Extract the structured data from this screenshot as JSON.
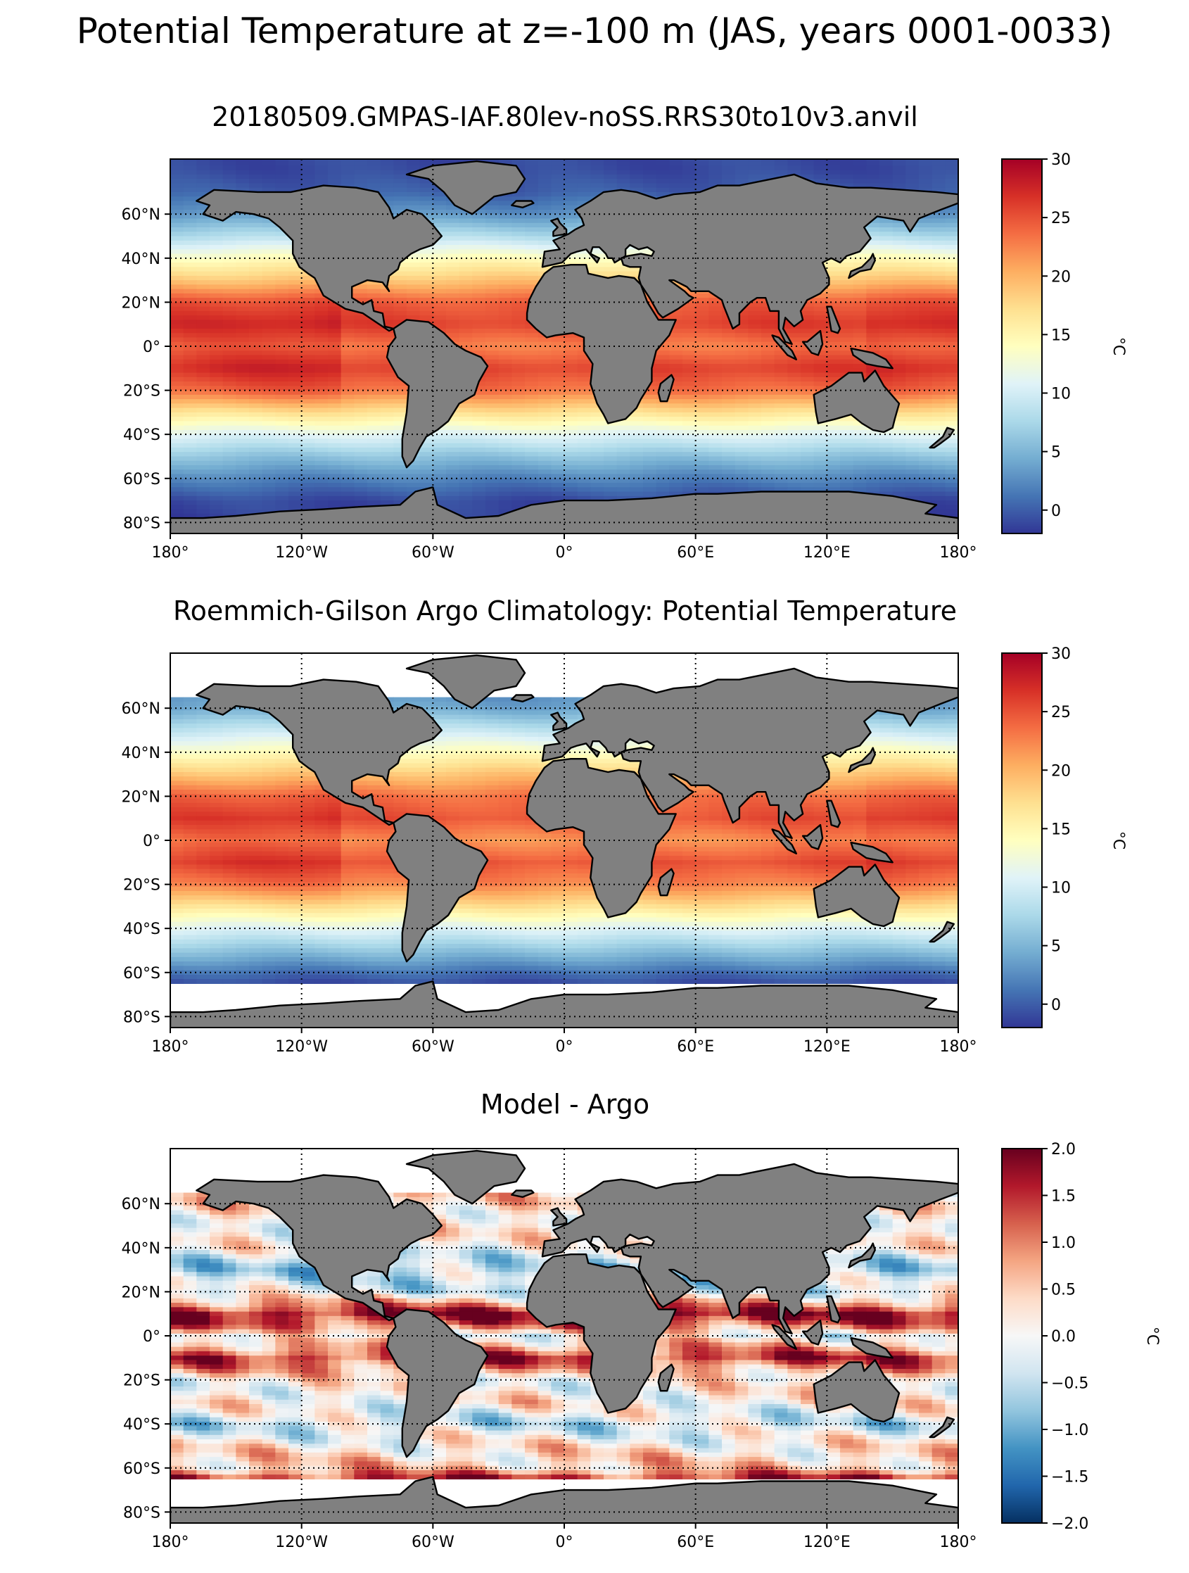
{
  "figure": {
    "suptitle": "Potential Temperature at z=-100 m (JAS, years 0001-0033)"
  },
  "chart_data": [
    {
      "type": "heatmap",
      "title": "20180509.GMPAS-IAF.80lev-noSS.RRS30to10v3.anvil",
      "xlim": [
        -180,
        180
      ],
      "ylim": [
        -85,
        85
      ],
      "xticks": [
        -180,
        -120,
        -60,
        0,
        60,
        120,
        180
      ],
      "xtick_labels": [
        "180°",
        "120°W",
        "60°W",
        "0°",
        "60°E",
        "120°E",
        "180°"
      ],
      "yticks": [
        60,
        40,
        20,
        0,
        -20,
        -40,
        -60,
        -80
      ],
      "ytick_labels": [
        "60°N",
        "40°N",
        "20°N",
        "0°",
        "20°S",
        "40°S",
        "60°S",
        "80°S"
      ],
      "grid": true,
      "land_color": "#808080",
      "missing_color": "#ffffff",
      "valid_lat_range": [
        -78,
        90
      ],
      "colorbar": {
        "label": "°C",
        "vmin": -2,
        "vmax": 30,
        "ticks": [
          0,
          5,
          10,
          15,
          20,
          25,
          30
        ],
        "tick_labels": [
          "0",
          "5",
          "10",
          "15",
          "20",
          "25",
          "30"
        ],
        "colormap": "RdYlBu_r"
      },
      "zonal_mean_profile": {
        "lat": [
          80,
          70,
          60,
          50,
          40,
          30,
          20,
          10,
          0,
          -10,
          -20,
          -30,
          -40,
          -50,
          -60,
          -70,
          -78
        ],
        "value": [
          -1,
          0,
          3,
          8,
          14,
          19,
          25,
          27,
          24,
          27,
          24,
          17,
          11,
          6,
          2,
          -1,
          -1.5
        ]
      }
    },
    {
      "type": "heatmap",
      "title": "Roemmich-Gilson Argo Climatology: Potential Temperature",
      "xlim": [
        -180,
        180
      ],
      "ylim": [
        -85,
        85
      ],
      "xticks": [
        -180,
        -120,
        -60,
        0,
        60,
        120,
        180
      ],
      "xtick_labels": [
        "180°",
        "120°W",
        "60°W",
        "0°",
        "60°E",
        "120°E",
        "180°"
      ],
      "yticks": [
        60,
        40,
        20,
        0,
        -20,
        -40,
        -60,
        -80
      ],
      "ytick_labels": [
        "60°N",
        "40°N",
        "20°N",
        "0°",
        "20°S",
        "40°S",
        "60°S",
        "80°S"
      ],
      "grid": true,
      "land_color": "#808080",
      "missing_color": "#ffffff",
      "valid_lat_range": [
        -65,
        65
      ],
      "colorbar": {
        "label": "°C",
        "vmin": -2,
        "vmax": 30,
        "ticks": [
          0,
          5,
          10,
          15,
          20,
          25,
          30
        ],
        "tick_labels": [
          "0",
          "5",
          "10",
          "15",
          "20",
          "25",
          "30"
        ],
        "colormap": "RdYlBu_r"
      },
      "zonal_mean_profile": {
        "lat": [
          65,
          60,
          50,
          40,
          30,
          20,
          10,
          0,
          -10,
          -20,
          -30,
          -40,
          -50,
          -60,
          -65
        ],
        "value": [
          3,
          4,
          9,
          14,
          19,
          24,
          26,
          23,
          26,
          23,
          17,
          11,
          6,
          1,
          -1
        ]
      }
    },
    {
      "type": "heatmap",
      "title": "Model - Argo",
      "xlim": [
        -180,
        180
      ],
      "ylim": [
        -85,
        85
      ],
      "xticks": [
        -180,
        -120,
        -60,
        0,
        60,
        120,
        180
      ],
      "xtick_labels": [
        "180°",
        "120°W",
        "60°W",
        "0°",
        "60°E",
        "120°E",
        "180°"
      ],
      "yticks": [
        60,
        40,
        20,
        0,
        -20,
        -40,
        -60,
        -80
      ],
      "ytick_labels": [
        "60°N",
        "40°N",
        "20°N",
        "0°",
        "20°S",
        "40°S",
        "60°S",
        "80°S"
      ],
      "grid": true,
      "land_color": "#808080",
      "missing_color": "#ffffff",
      "valid_lat_range": [
        -65,
        65
      ],
      "colorbar": {
        "label": "°C",
        "vmin": -2,
        "vmax": 2,
        "ticks": [
          -2.0,
          -1.5,
          -1.0,
          -0.5,
          0.0,
          0.5,
          1.0,
          1.5,
          2.0
        ],
        "tick_labels": [
          "−2.0",
          "−1.5",
          "−1.0",
          "−0.5",
          "0.0",
          "0.5",
          "1.0",
          "1.5",
          "2.0"
        ],
        "colormap": "RdBu_r"
      },
      "zonal_mean_profile": {
        "lat": [
          65,
          60,
          50,
          40,
          30,
          20,
          10,
          5,
          0,
          -10,
          -20,
          -30,
          -40,
          -50,
          -60,
          -65
        ],
        "value": [
          0.3,
          0.4,
          0.2,
          0.0,
          -0.6,
          -0.2,
          1.8,
          1.2,
          0.0,
          1.5,
          0.1,
          0.2,
          -0.4,
          0.2,
          0.5,
          1.6
        ]
      }
    }
  ]
}
